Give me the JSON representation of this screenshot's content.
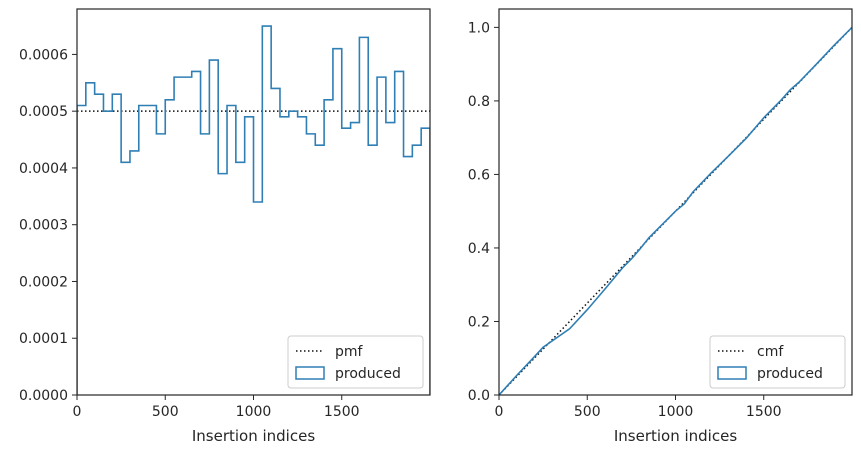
{
  "colors": {
    "produced": "#2f7fb5",
    "reference": "#111111",
    "axes": "#262626"
  },
  "chart_data": [
    {
      "type": "step",
      "xlabel": "Insertion indices",
      "ylabel": "",
      "xlim": [
        0,
        2000
      ],
      "ylim": [
        0,
        0.00068
      ],
      "xticks": [
        0,
        500,
        1000,
        1500
      ],
      "xtick_labels": [
        "0",
        "500",
        "1000",
        "1500"
      ],
      "yticks": [
        0,
        0.0001,
        0.0002,
        0.0003,
        0.0004,
        0.0005,
        0.0006
      ],
      "ytick_labels": [
        "0.0000",
        "0.0001",
        "0.0002",
        "0.0003",
        "0.0004",
        "0.0005",
        "0.0006"
      ],
      "reference": {
        "name": "pmf",
        "y": 0.0005,
        "style": "dotted"
      },
      "series": [
        {
          "name": "produced",
          "bin_edges": [
            0,
            50,
            100,
            150,
            200,
            250,
            300,
            350,
            400,
            450,
            500,
            550,
            600,
            650,
            700,
            750,
            800,
            850,
            900,
            950,
            1000,
            1050,
            1100,
            1150,
            1200,
            1250,
            1300,
            1350,
            1400,
            1450,
            1500,
            1550,
            1600,
            1650,
            1700,
            1750,
            1800,
            1850,
            1900,
            1950,
            2000
          ],
          "values": [
            0.00051,
            0.00055,
            0.00053,
            0.0005,
            0.00053,
            0.00041,
            0.00043,
            0.00051,
            0.00051,
            0.00046,
            0.00052,
            0.00056,
            0.00056,
            0.00057,
            0.00046,
            0.00059,
            0.00039,
            0.00051,
            0.00041,
            0.00049,
            0.00034,
            0.00065,
            0.00054,
            0.00049,
            0.0005,
            0.00049,
            0.00046,
            0.00044,
            0.00052,
            0.00061,
            0.00047,
            0.00048,
            0.00063,
            0.00044,
            0.00056,
            0.00048,
            0.00057,
            0.00042,
            0.00044,
            0.00047
          ]
        }
      ],
      "legend": {
        "location": "lower-right",
        "entries": [
          "pmf",
          "produced"
        ]
      },
      "grid": false
    },
    {
      "type": "step",
      "xlabel": "Insertion indices",
      "ylabel": "",
      "xlim": [
        0,
        2000
      ],
      "ylim": [
        0,
        1.05
      ],
      "xticks": [
        0,
        500,
        1000,
        1500
      ],
      "xtick_labels": [
        "0",
        "500",
        "1000",
        "1500"
      ],
      "yticks": [
        0,
        0.2,
        0.4,
        0.6,
        0.8,
        1.0
      ],
      "ytick_labels": [
        "0.0",
        "0.2",
        "0.4",
        "0.6",
        "0.8",
        "1.0"
      ],
      "reference": {
        "name": "cmf",
        "from": [
          0,
          0
        ],
        "to": [
          2000,
          1.0
        ],
        "style": "dotted"
      },
      "series": [
        {
          "name": "produced",
          "x": [
            0,
            100,
            200,
            250,
            400,
            500,
            600,
            700,
            750,
            800,
            850,
            900,
            1000,
            1050,
            1100,
            1200,
            1300,
            1400,
            1500,
            1600,
            1650,
            1700,
            1800,
            1900,
            2000
          ],
          "y": [
            0,
            0.053,
            0.104,
            0.13,
            0.18,
            0.232,
            0.288,
            0.346,
            0.37,
            0.398,
            0.428,
            0.452,
            0.5,
            0.52,
            0.553,
            0.603,
            0.65,
            0.698,
            0.754,
            0.803,
            0.83,
            0.851,
            0.901,
            0.952,
            1.0
          ]
        }
      ],
      "legend": {
        "location": "lower-right",
        "entries": [
          "cmf",
          "produced"
        ]
      },
      "grid": false
    }
  ]
}
